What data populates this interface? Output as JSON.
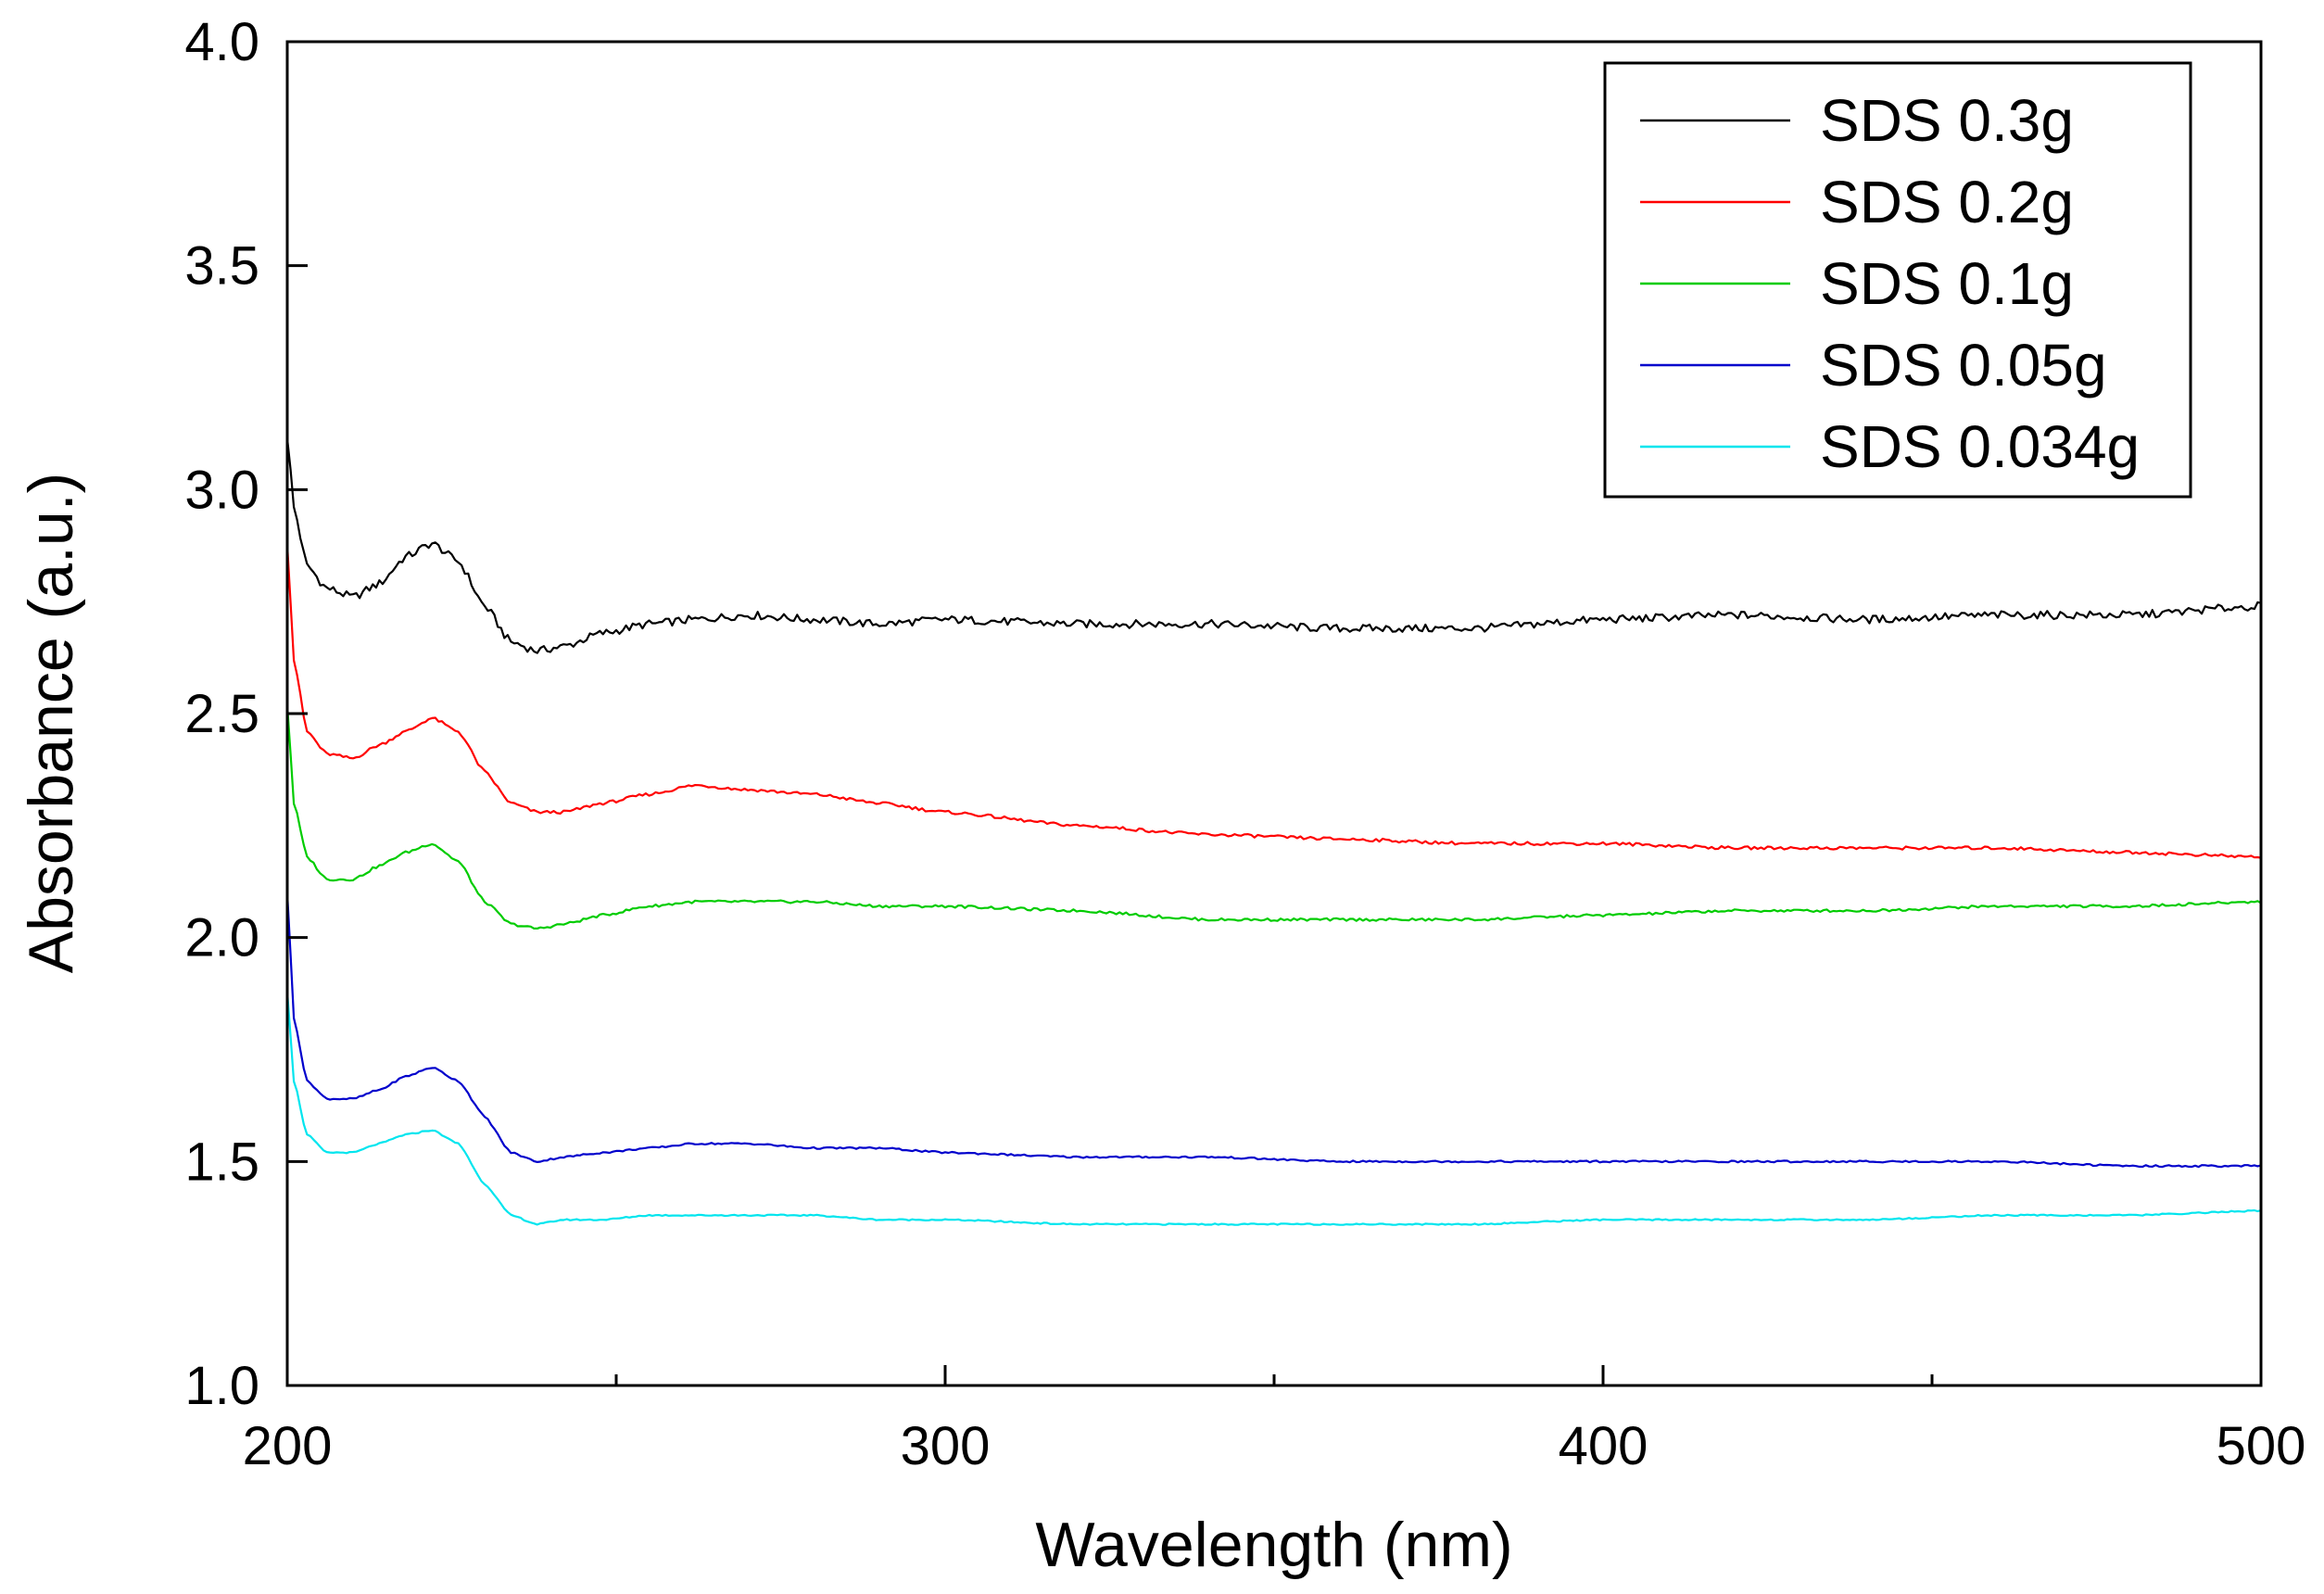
{
  "chart_data": {
    "type": "line",
    "title": "",
    "xlabel": "Wavelength (nm)",
    "ylabel": "Absorbance (a.u.)",
    "xlim": [
      200,
      500
    ],
    "ylim": [
      1.0,
      4.0
    ],
    "x_ticks": [
      200,
      300,
      400,
      500
    ],
    "x_minor_ticks": [
      250,
      350,
      450
    ],
    "y_ticks": [
      1.0,
      1.5,
      2.0,
      2.5,
      3.0,
      3.5,
      4.0
    ],
    "y_tick_labels": [
      "1.0",
      "1.5",
      "2.0",
      "2.5",
      "3.0",
      "3.5",
      "4.0"
    ],
    "grid": false,
    "legend_position": "top-right",
    "x": [
      200,
      201,
      203,
      206,
      210,
      214,
      218,
      222,
      226,
      230,
      234,
      238,
      242,
      248,
      255,
      262,
      270,
      280,
      290,
      300,
      320,
      340,
      360,
      380,
      400,
      420,
      440,
      460,
      480,
      500
    ],
    "series": [
      {
        "name": "SDS 0.3g",
        "color": "#000000",
        "values": [
          3.12,
          2.96,
          2.83,
          2.78,
          2.76,
          2.79,
          2.85,
          2.88,
          2.84,
          2.74,
          2.66,
          2.64,
          2.65,
          2.68,
          2.7,
          2.71,
          2.72,
          2.71,
          2.7,
          2.71,
          2.7,
          2.7,
          2.69,
          2.69,
          2.71,
          2.72,
          2.71,
          2.72,
          2.72,
          2.74
        ]
      },
      {
        "name": "SDS 0.2g",
        "color": "#ff0000",
        "values": [
          2.88,
          2.62,
          2.46,
          2.41,
          2.4,
          2.43,
          2.46,
          2.49,
          2.46,
          2.37,
          2.3,
          2.28,
          2.28,
          2.3,
          2.32,
          2.34,
          2.33,
          2.32,
          2.3,
          2.28,
          2.25,
          2.23,
          2.22,
          2.21,
          2.21,
          2.2,
          2.2,
          2.2,
          2.19,
          2.18
        ]
      },
      {
        "name": "SDS 0.1g",
        "color": "#00cc00",
        "values": [
          2.52,
          2.3,
          2.18,
          2.13,
          2.13,
          2.16,
          2.19,
          2.21,
          2.17,
          2.08,
          2.03,
          2.02,
          2.03,
          2.05,
          2.07,
          2.08,
          2.08,
          2.08,
          2.07,
          2.07,
          2.06,
          2.04,
          2.04,
          2.04,
          2.05,
          2.06,
          2.06,
          2.07,
          2.07,
          2.08
        ]
      },
      {
        "name": "SDS 0.05g",
        "color": "#0000cc",
        "values": [
          2.1,
          1.82,
          1.68,
          1.64,
          1.64,
          1.66,
          1.69,
          1.71,
          1.68,
          1.6,
          1.52,
          1.5,
          1.51,
          1.52,
          1.53,
          1.54,
          1.54,
          1.53,
          1.53,
          1.52,
          1.51,
          1.51,
          1.5,
          1.5,
          1.5,
          1.5,
          1.5,
          1.5,
          1.49,
          1.49
        ]
      },
      {
        "name": "SDS 0.034g",
        "color": "#00e5ee",
        "values": [
          1.88,
          1.68,
          1.56,
          1.52,
          1.52,
          1.54,
          1.56,
          1.57,
          1.54,
          1.45,
          1.38,
          1.36,
          1.37,
          1.37,
          1.38,
          1.38,
          1.38,
          1.38,
          1.37,
          1.37,
          1.36,
          1.36,
          1.36,
          1.36,
          1.37,
          1.37,
          1.37,
          1.38,
          1.38,
          1.39
        ]
      }
    ]
  }
}
